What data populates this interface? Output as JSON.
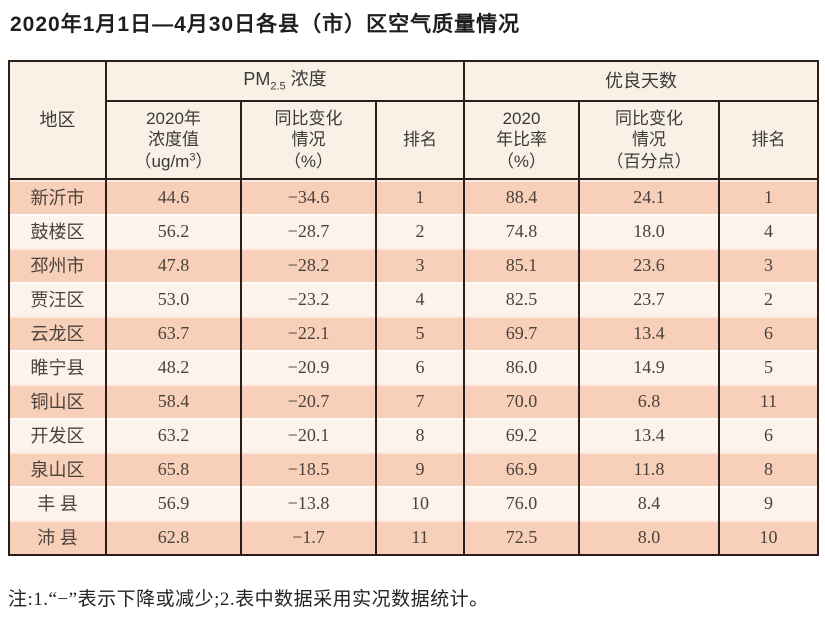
{
  "title": "2020年1月1日—4月30日各县（市）区空气质量情况",
  "note": "注:1.“−”表示下降或减少;2.表中数据采用实况数据统计。",
  "colors": {
    "border": "#2c1e18",
    "header_bg": "#faf1e6",
    "row_salmon": "#f8d0b9",
    "row_light": "#fdf3ec"
  },
  "table": {
    "header": {
      "region": "地区",
      "pm_group": {
        "prefix": "PM",
        "sub": "2.5",
        "suffix": " 浓度"
      },
      "good_group": "优良天数",
      "pm_concentration": {
        "line1": "2020年",
        "line2": "浓度值",
        "line3_prefix": "（ug/m",
        "line3_sup": "3",
        "line3_suffix": "）"
      },
      "pm_yoy": {
        "line1": "同比变化",
        "line2": "情况",
        "line3": "（%）"
      },
      "pm_rank": "排名",
      "good_ratio": {
        "line1": "2020",
        "line2": "年比率",
        "line3": "（%）"
      },
      "good_yoy": {
        "line1": "同比变化",
        "line2": "情况",
        "line3": "（百分点）"
      },
      "good_rank": "排名"
    },
    "rows": [
      {
        "region": "新沂市",
        "pm_value": "44.6",
        "pm_yoy": "−34.6",
        "pm_rank": "1",
        "good_ratio": "88.4",
        "good_yoy": "24.1",
        "good_rank": "1"
      },
      {
        "region": "鼓楼区",
        "pm_value": "56.2",
        "pm_yoy": "−28.7",
        "pm_rank": "2",
        "good_ratio": "74.8",
        "good_yoy": "18.0",
        "good_rank": "4"
      },
      {
        "region": "邳州市",
        "pm_value": "47.8",
        "pm_yoy": "−28.2",
        "pm_rank": "3",
        "good_ratio": "85.1",
        "good_yoy": "23.6",
        "good_rank": "3"
      },
      {
        "region": "贾汪区",
        "pm_value": "53.0",
        "pm_yoy": "−23.2",
        "pm_rank": "4",
        "good_ratio": "82.5",
        "good_yoy": "23.7",
        "good_rank": "2"
      },
      {
        "region": "云龙区",
        "pm_value": "63.7",
        "pm_yoy": "−22.1",
        "pm_rank": "5",
        "good_ratio": "69.7",
        "good_yoy": "13.4",
        "good_rank": "6"
      },
      {
        "region": "睢宁县",
        "pm_value": "48.2",
        "pm_yoy": "−20.9",
        "pm_rank": "6",
        "good_ratio": "86.0",
        "good_yoy": "14.9",
        "good_rank": "5"
      },
      {
        "region": "铜山区",
        "pm_value": "58.4",
        "pm_yoy": "−20.7",
        "pm_rank": "7",
        "good_ratio": "70.0",
        "good_yoy": "6.8",
        "good_rank": "11"
      },
      {
        "region": "开发区",
        "pm_value": "63.2",
        "pm_yoy": "−20.1",
        "pm_rank": "8",
        "good_ratio": "69.2",
        "good_yoy": "13.4",
        "good_rank": "6"
      },
      {
        "region": "泉山区",
        "pm_value": "65.8",
        "pm_yoy": "−18.5",
        "pm_rank": "9",
        "good_ratio": "66.9",
        "good_yoy": "11.8",
        "good_rank": "8"
      },
      {
        "region": "丰 县",
        "pm_value": "56.9",
        "pm_yoy": "−13.8",
        "pm_rank": "10",
        "good_ratio": "76.0",
        "good_yoy": "8.4",
        "good_rank": "9"
      },
      {
        "region": "沛 县",
        "pm_value": "62.8",
        "pm_yoy": "−1.7",
        "pm_rank": "11",
        "good_ratio": "72.5",
        "good_yoy": "8.0",
        "good_rank": "10"
      }
    ]
  }
}
